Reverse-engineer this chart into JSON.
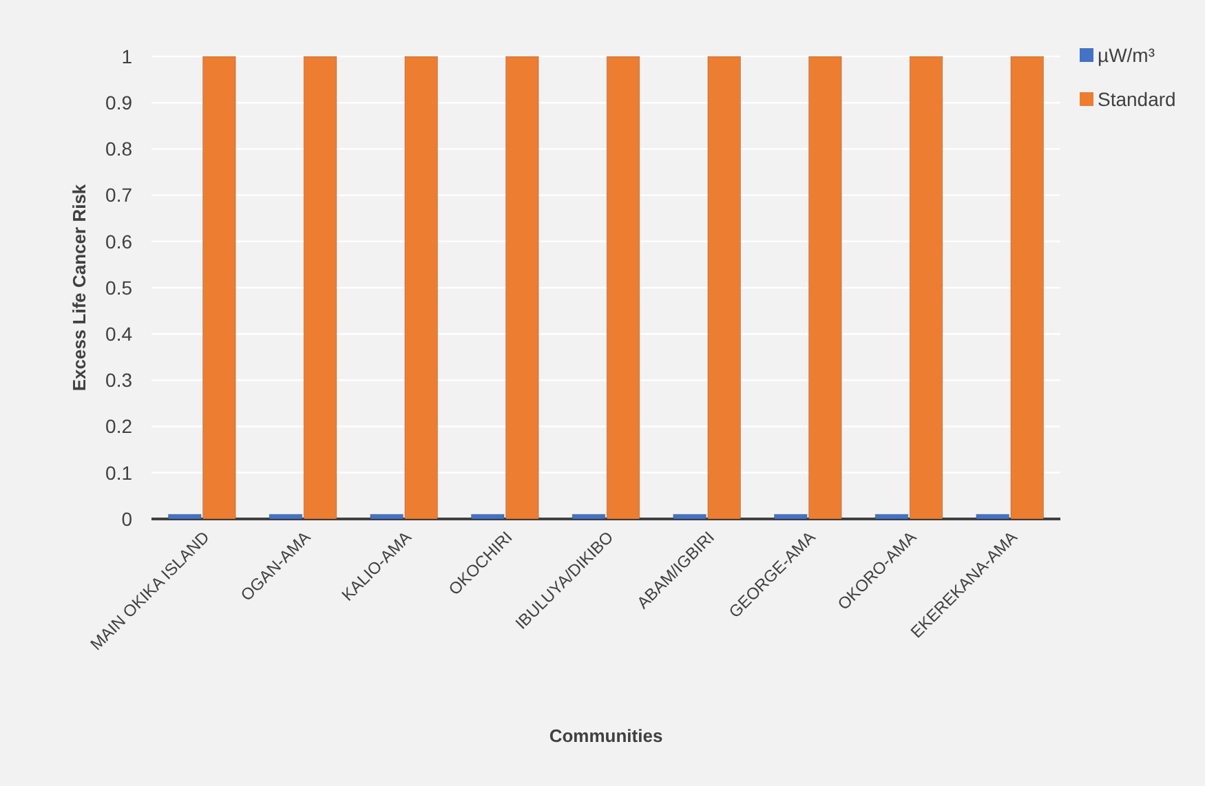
{
  "chart_data": {
    "type": "bar",
    "xlabel": "Communities",
    "ylabel": "Excess Life Cancer Risk",
    "categories": [
      "MAIN OKIKA ISLAND",
      "OGAN-AMA",
      "KALIO-AMA",
      "OKOCHIRI",
      "IBULUYA/DIKIBO",
      "ABAM/IGBIRI",
      "GEORGE-AMA",
      "OKORO-AMA",
      "EKEREKANA-AMA"
    ],
    "series": [
      {
        "name": "µW/m³",
        "color": "#4472c4",
        "values": [
          0.01,
          0.01,
          0.01,
          0.01,
          0.01,
          0.01,
          0.01,
          0.01,
          0.01
        ]
      },
      {
        "name": "Standard",
        "color": "#ed7d31",
        "values": [
          1,
          1,
          1,
          1,
          1,
          1,
          1,
          1,
          1
        ]
      }
    ],
    "ylim": [
      0,
      1
    ],
    "yticks": [
      0,
      0.1,
      0.2,
      0.3,
      0.4,
      0.5,
      0.6,
      0.7,
      0.8,
      0.9,
      1
    ],
    "grid": true,
    "legend": "top right"
  }
}
